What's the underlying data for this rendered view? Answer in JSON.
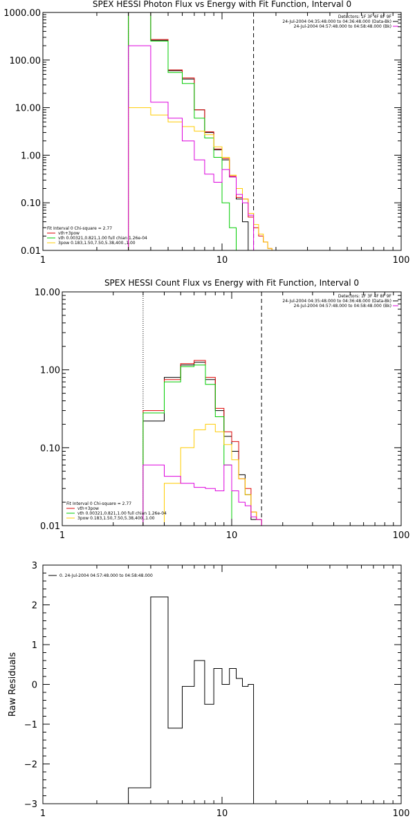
{
  "colors": {
    "data": "#000000",
    "total": "#dd0000",
    "thermal": "#00cc00",
    "nonthermal": "#ffcc00",
    "background": "#dd00dd"
  },
  "chart_data": [
    {
      "type": "line",
      "title": "SPEX HESSI Photon Flux vs Energy with Fit Function, Interval 0",
      "xlabel": "",
      "ylabel": "",
      "xscale": "log",
      "yscale": "log",
      "xlim": [
        1,
        100
      ],
      "ylim": [
        0.01,
        1000
      ],
      "xticklabels": [
        "1",
        "10",
        "100"
      ],
      "yticklabels": [
        "0.01",
        "0.10",
        "1.00",
        "10.00",
        "100.00",
        "1000.00"
      ],
      "vlines": [
        {
          "x": 3,
          "style": "dotted"
        },
        {
          "x": 15,
          "style": "dashed"
        }
      ],
      "info": [
        "Detectors: 1F 3F 4F 8F 9F",
        "24-Jul-2004 04:35:48.000 to 04:36:48.000 (Data-Bk)",
        "24-Jul-2004 04:57:48.000 to 04:58:48.000 (Bk)"
      ],
      "fitinfo": [
        "Fit Interval 0   Chi-square = 2.77",
        "vth+3pow",
        "vth 0.00321,0.821,1.00  full chian 1.26e-04",
        "3pow 0.183,1.50,7.50,5.38,400.,1.00"
      ],
      "edges": [
        3,
        4,
        5,
        6,
        7,
        8,
        9,
        10,
        11,
        12,
        13,
        14,
        15,
        16,
        17,
        18,
        19,
        20,
        22
      ],
      "series": [
        {
          "name": "",
          "key": "data",
          "values": [
            1000,
            260,
            60,
            40,
            9,
            3,
            1.3,
            0.8,
            0.35,
            0.12,
            0.04,
            0.01
          ]
        },
        {
          "name": "vth+3pow",
          "key": "total",
          "values": [
            1000,
            270,
            62,
            42,
            9,
            3.1,
            1.35,
            0.85,
            0.36,
            0.13,
            0.12,
            0.05,
            0.03,
            0.02,
            0.015,
            0.011,
            0.01,
            0.01
          ]
        },
        {
          "name": "vth",
          "key": "thermal",
          "values": [
            1000,
            250,
            55,
            32,
            6,
            2.3,
            0.9,
            0.1,
            0.03,
            0.005
          ]
        },
        {
          "name": "3pow",
          "key": "nonthermal",
          "values": [
            10,
            7,
            5,
            4,
            3.2,
            2.7,
            1.5,
            0.9,
            0.38,
            0.2,
            0.12,
            0.06,
            0.035,
            0.022,
            0.015,
            0.011,
            0.01,
            0.01
          ]
        },
        {
          "name": "",
          "key": "background",
          "values": [
            200,
            13,
            6,
            2,
            0.8,
            0.4,
            0.27,
            0.5,
            0.35,
            0.15,
            0.1,
            0.055,
            0.004
          ]
        }
      ]
    },
    {
      "type": "line",
      "title": "SPEX HESSI Count Flux vs Energy with Fit Function, Interval 0",
      "xlabel": "",
      "ylabel": "",
      "xscale": "log",
      "yscale": "log",
      "xlim": [
        1,
        100
      ],
      "ylim": [
        0.01,
        10
      ],
      "xticklabels": [
        "1",
        "10",
        "100"
      ],
      "yticklabels": [
        "0.01",
        "0.10",
        "1.00",
        "10.00"
      ],
      "vlines": [
        {
          "x": 3,
          "style": "dotted"
        },
        {
          "x": 15,
          "style": "dashed"
        }
      ],
      "info": [
        "Detectors: 1F 3F 4F 8F 9F",
        "24-Jul-2004 04:35:48.000 to 04:36:48.000 (Data-Bk)",
        "24-Jul-2004 04:57:48.000 to 04:58:48.000 (Bk)"
      ],
      "fitinfo": [
        "Fit Interval 0   Chi-square = 2.77",
        "vth+3pow",
        "vth 0.00321,0.821,1.00  full chian 1.26e-04",
        "3pow 0.183,1.50,7.50,5.38,400.,1.00"
      ],
      "edges": [
        3,
        4,
        5,
        6,
        7,
        8,
        9,
        10,
        11,
        12,
        13,
        14,
        15
      ],
      "series": [
        {
          "name": "",
          "key": "data",
          "values": [
            0.22,
            0.8,
            1.15,
            1.25,
            0.75,
            0.3,
            0.14,
            0.09,
            0.045,
            0.025,
            0.012,
            0.012
          ]
        },
        {
          "name": "vth+3pow",
          "key": "total",
          "values": [
            0.3,
            0.75,
            1.2,
            1.32,
            0.8,
            0.32,
            0.16,
            0.12,
            0.04,
            0.03,
            0.015,
            0.012
          ]
        },
        {
          "name": "vth",
          "key": "thermal",
          "values": [
            0.28,
            0.7,
            1.1,
            1.15,
            0.65,
            0.25,
            0.06,
            0.01,
            0.003
          ]
        },
        {
          "name": "3pow",
          "key": "nonthermal",
          "values": [
            0.01,
            0.035,
            0.1,
            0.17,
            0.2,
            0.16,
            0.11,
            0.07,
            0.04,
            0.025,
            0.015,
            0.012
          ]
        },
        {
          "name": "",
          "key": "background",
          "values": [
            0.06,
            0.043,
            0.035,
            0.031,
            0.03,
            0.028,
            0.06,
            0.028,
            0.02,
            0.018,
            0.013,
            0.012
          ]
        }
      ]
    },
    {
      "type": "line",
      "title": "",
      "xlabel": "",
      "ylabel": "Raw Residuals",
      "xscale": "log",
      "yscale": "linear",
      "xlim": [
        1,
        100
      ],
      "ylim": [
        -3,
        3
      ],
      "xticklabels": [
        "1",
        "10",
        "100"
      ],
      "yticklabels": [
        "-3",
        "-2",
        "-1",
        "0",
        "1",
        "2",
        "3"
      ],
      "legend": "0. 24-Jul-2004 04:57:48.000 to 04:58:48.000",
      "edges": [
        3,
        4,
        5,
        6,
        7,
        8,
        9,
        10,
        11,
        12,
        13,
        14,
        15
      ],
      "series": [
        {
          "name": "0. 24-Jul-2004 04:57:48.000 to 04:58:48.000",
          "key": "data",
          "values": [
            -2.6,
            2.2,
            -1.1,
            -0.05,
            0.6,
            -0.5,
            0.4,
            0.0,
            0.4,
            0.15,
            -0.05,
            0.0
          ]
        }
      ]
    }
  ]
}
